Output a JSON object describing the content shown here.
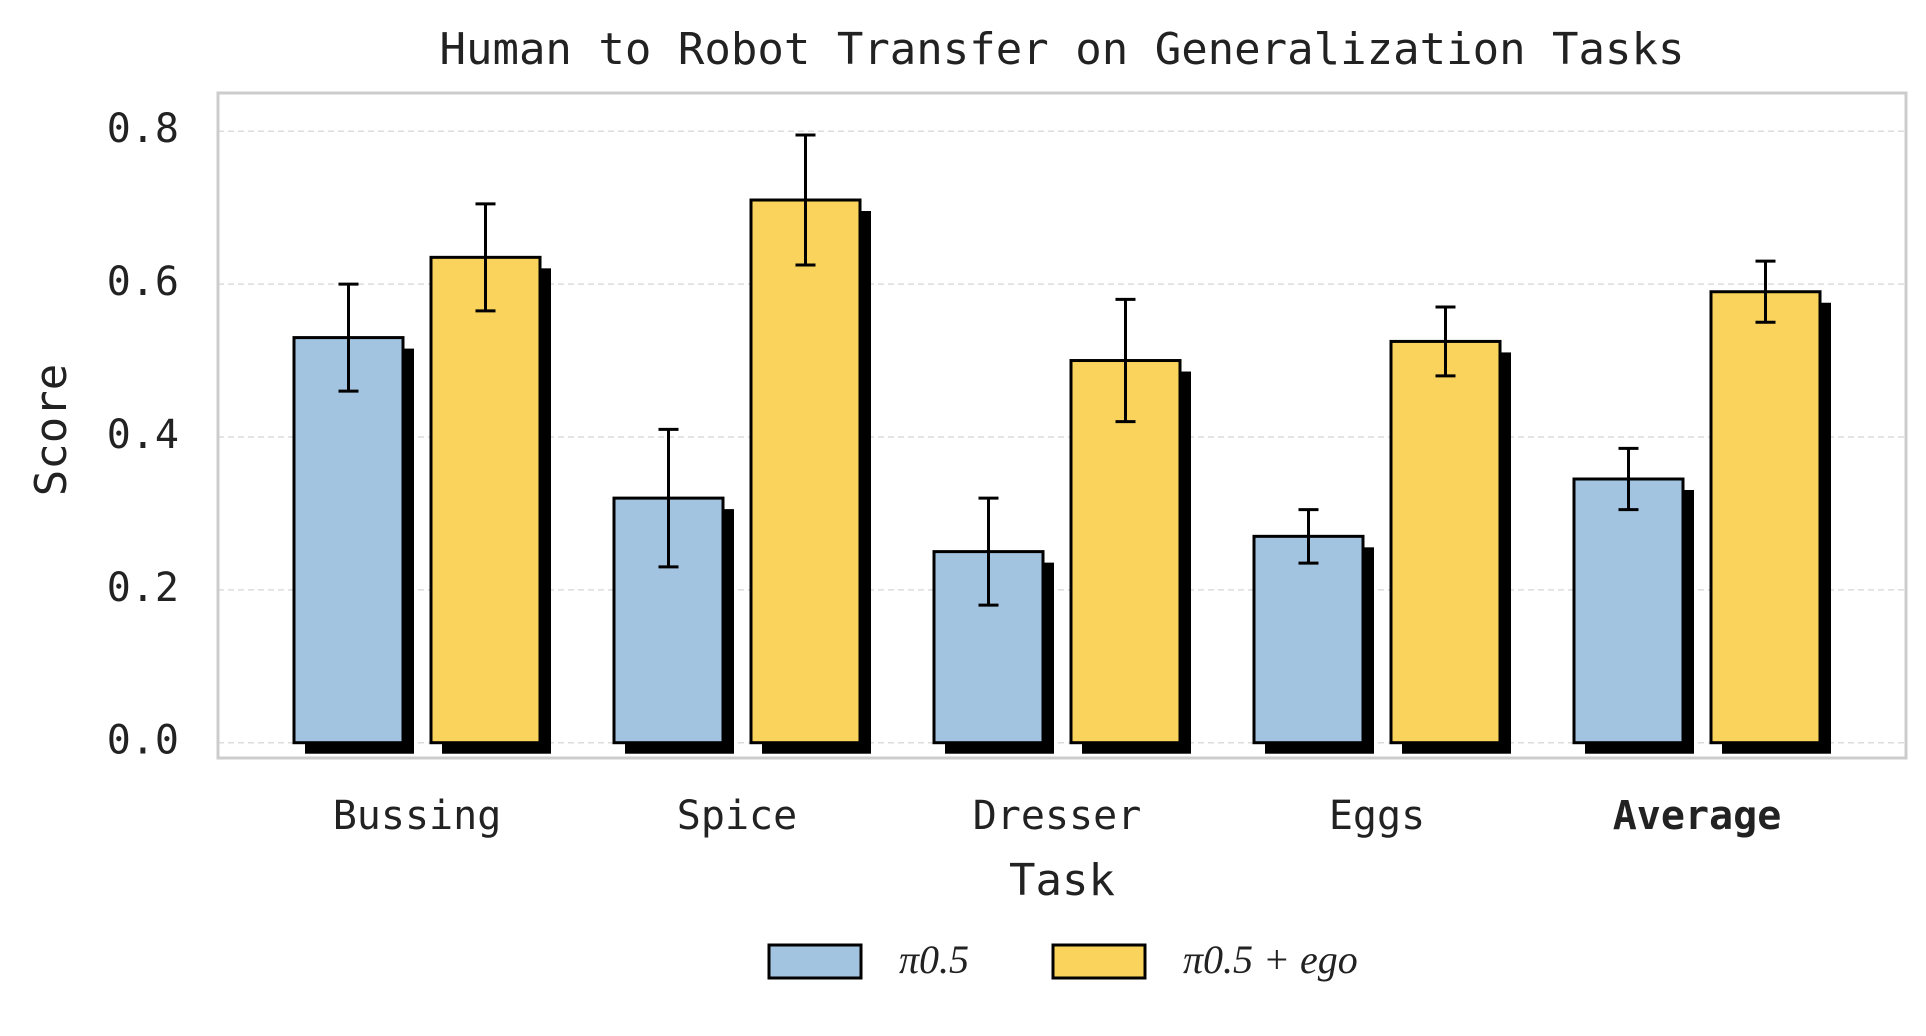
{
  "chart_data": {
    "type": "bar",
    "title": "Human to Robot Transfer on Generalization Tasks",
    "x_label": "Task",
    "y_label": "Score",
    "categories": [
      "Bussing",
      "Spice",
      "Dresser",
      "Eggs",
      "Average"
    ],
    "series": [
      {
        "name": "π0.5",
        "color": "#a3c4e0",
        "values": [
          0.53,
          0.32,
          0.25,
          0.27,
          0.345
        ],
        "errors": [
          0.07,
          0.09,
          0.07,
          0.035,
          0.04
        ]
      },
      {
        "name": "π0.5 + ego",
        "color": "#f9d35b",
        "values": [
          0.635,
          0.71,
          0.5,
          0.525,
          0.59
        ],
        "errors": [
          0.07,
          0.085,
          0.08,
          0.045,
          0.04
        ]
      }
    ],
    "ylim": [
      -0.02,
      0.85
    ],
    "yticks": [
      {
        "value": 0,
        "label": "0.0"
      },
      0.2,
      0.4,
      0.6,
      0.8
    ],
    "grid": true
  }
}
